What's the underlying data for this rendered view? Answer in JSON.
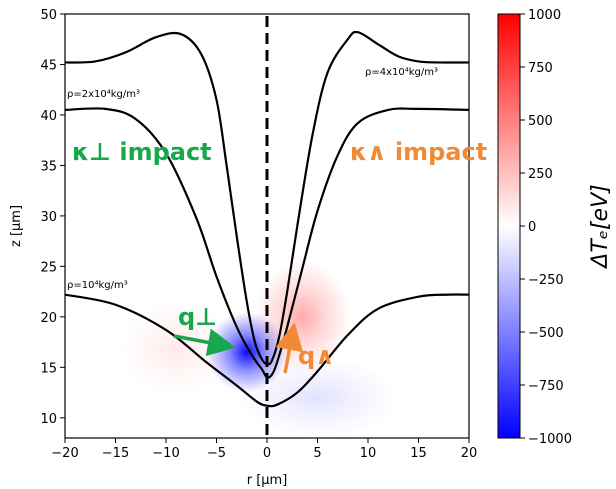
{
  "colors": {
    "contour": "#000000",
    "green": "#17a84d",
    "orange": "#f08a37",
    "cold": "#0000ff",
    "hot": "#ff0000"
  },
  "chart_data": {
    "type": "heatmap",
    "title": "",
    "xlabel": "r [μm]",
    "ylabel": "z [μm]",
    "xlim": [
      -20,
      20
    ],
    "ylim": [
      8,
      50
    ],
    "xticks": [
      -20,
      -15,
      -10,
      -5,
      0,
      5,
      10,
      15,
      20
    ],
    "yticks": [
      10,
      15,
      20,
      25,
      30,
      35,
      40,
      45,
      50
    ],
    "xticklabels": [
      "−20",
      "−15",
      "−10",
      "−5",
      "0",
      "5",
      "10",
      "15",
      "20"
    ],
    "yticklabels": [
      "10",
      "15",
      "20",
      "25",
      "30",
      "35",
      "40",
      "45",
      "50"
    ],
    "grid": false,
    "colorbar": {
      "label": "ΔTₑ[eV]",
      "range": [
        -1000,
        1000
      ],
      "ticks": [
        1000,
        750,
        500,
        250,
        0,
        -250,
        -500,
        -750,
        -1000
      ],
      "ticklabels": [
        "1000",
        "750",
        "500",
        "250",
        "0",
        "−250",
        "−500",
        "−750",
        "−1000"
      ],
      "colormap": "bwr"
    },
    "heat_blobs": [
      {
        "r": -2.0,
        "z": 16.5,
        "sr": 2.5,
        "sz": 2.5,
        "value": -1000
      },
      {
        "r": 3.5,
        "z": 20.0,
        "sr": 3.0,
        "sz": 3.5,
        "value": 350
      },
      {
        "r": -9.0,
        "z": 17.0,
        "sr": 3.5,
        "sz": 3.0,
        "value": 90
      },
      {
        "r": 5.0,
        "z": 12.0,
        "sr": 5.0,
        "sz": 2.5,
        "value": -120
      }
    ],
    "contours": [
      {
        "label": "ρ=10⁴kg/m³",
        "points": [
          [
            -20,
            22.2
          ],
          [
            -15,
            21.2
          ],
          [
            -10,
            18.7
          ],
          [
            -6,
            15.5
          ],
          [
            -3,
            13.2
          ],
          [
            -1,
            11.6
          ],
          [
            0,
            11.2
          ],
          [
            1,
            11.3
          ],
          [
            3,
            12.5
          ],
          [
            5,
            14.6
          ],
          [
            8,
            18.2
          ],
          [
            11,
            20.8
          ],
          [
            15,
            22.0
          ],
          [
            18,
            22.2
          ],
          [
            20,
            22.2
          ]
        ]
      },
      {
        "label": "ρ=2x10⁴kg/m³",
        "points": [
          [
            -20,
            40.5
          ],
          [
            -16,
            40.6
          ],
          [
            -13,
            39.6
          ],
          [
            -10,
            36.2
          ],
          [
            -7,
            29.8
          ],
          [
            -5,
            24.0
          ],
          [
            -3,
            19.0
          ],
          [
            -1.5,
            16.2
          ],
          [
            -0.5,
            14.8
          ],
          [
            0,
            14.0
          ],
          [
            0.5,
            14.3
          ],
          [
            1,
            15.5
          ],
          [
            2,
            19.0
          ],
          [
            3.5,
            24.8
          ],
          [
            5,
            30.5
          ],
          [
            7,
            36.0
          ],
          [
            9,
            39.2
          ],
          [
            12,
            40.5
          ],
          [
            15,
            40.6
          ],
          [
            20,
            40.5
          ]
        ]
      },
      {
        "label": "ρ=4x10⁴kg/m³",
        "points": [
          [
            -20,
            45.2
          ],
          [
            -17,
            45.3
          ],
          [
            -14,
            46.2
          ],
          [
            -11,
            47.7
          ],
          [
            -8.5,
            48.0
          ],
          [
            -6.5,
            46.0
          ],
          [
            -5,
            41.5
          ],
          [
            -4,
            35.0
          ],
          [
            -3,
            28.0
          ],
          [
            -2,
            21.5
          ],
          [
            -1.2,
            17.5
          ],
          [
            -0.5,
            15.8
          ],
          [
            0,
            15.3
          ],
          [
            0.5,
            15.7
          ],
          [
            1.2,
            18.0
          ],
          [
            2,
            22.5
          ],
          [
            3,
            29.0
          ],
          [
            4.5,
            38.0
          ],
          [
            6,
            44.2
          ],
          [
            8,
            47.5
          ],
          [
            9,
            48.2
          ],
          [
            11,
            47.0
          ],
          [
            13,
            45.8
          ],
          [
            15,
            45.3
          ],
          [
            17,
            45.2
          ],
          [
            20,
            45.2
          ]
        ]
      }
    ],
    "annotations": {
      "label_low": "ρ=10⁴kg/m³",
      "label_mid": "ρ=2x10⁴kg/m³",
      "label_high": "ρ=4x10⁴kg/m³",
      "kappa_perp": "κ⊥ impact",
      "kappa_wedge": "κ∧ impact",
      "q_perp": "q⊥",
      "q_wedge": "q∧"
    }
  }
}
